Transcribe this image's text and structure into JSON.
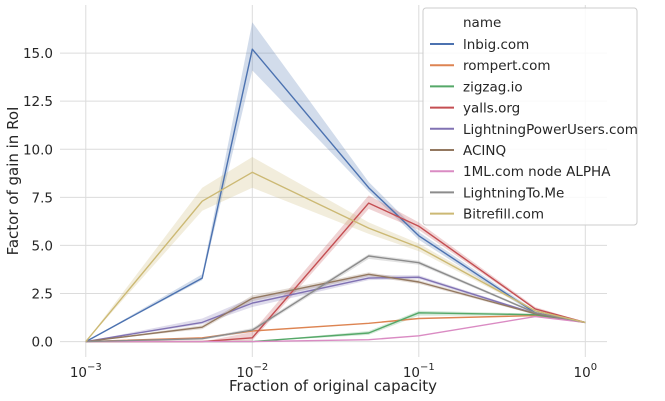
{
  "chart_data": {
    "type": "line",
    "xlabel": "Fraction of original capacity",
    "ylabel": "Factor of gain in RoI",
    "xscale": "log",
    "xlim": [
      0.0007,
      1.35
    ],
    "ylim": [
      -0.8,
      17.5
    ],
    "x_ticks": [
      {
        "value": 0.001,
        "base": "10",
        "exp": "−3"
      },
      {
        "value": 0.01,
        "base": "10",
        "exp": "−2"
      },
      {
        "value": 0.1,
        "base": "10",
        "exp": "−1"
      },
      {
        "value": 1,
        "base": "10",
        "exp": "0"
      }
    ],
    "y_ticks": [
      {
        "value": 0,
        "label": "0.0"
      },
      {
        "value": 2.5,
        "label": "2.5"
      },
      {
        "value": 5,
        "label": "5.0"
      },
      {
        "value": 7.5,
        "label": "7.5"
      },
      {
        "value": 10,
        "label": "10.0"
      },
      {
        "value": 12.5,
        "label": "12.5"
      },
      {
        "value": 15,
        "label": "15.0"
      }
    ],
    "grid": true,
    "legend": {
      "title": "name",
      "placement": "top-right"
    },
    "x": [
      0.001,
      0.005,
      0.01,
      0.05,
      0.1,
      0.5,
      1
    ],
    "series": [
      {
        "name": "lnbig.com",
        "color": "#4c72b0",
        "values": [
          0,
          3.3,
          15.2,
          8.0,
          5.5,
          1.5,
          1.0
        ],
        "ci_low": [
          0,
          3.2,
          14.1,
          7.8,
          5.3,
          1.4,
          1.0
        ],
        "ci_high": [
          0,
          3.5,
          16.6,
          8.3,
          5.7,
          1.6,
          1.0
        ]
      },
      {
        "name": "rompert.com",
        "color": "#dd8452",
        "values": [
          0,
          0.2,
          0.55,
          0.95,
          1.2,
          1.35,
          1.0
        ]
      },
      {
        "name": "zigzag.io",
        "color": "#55a868",
        "values": [
          0,
          0,
          0,
          0.45,
          1.5,
          1.4,
          1.0
        ],
        "ci_low": [
          0,
          0,
          0,
          0.35,
          1.35,
          1.35,
          1.0
        ],
        "ci_high": [
          0,
          0,
          0,
          0.55,
          1.6,
          1.45,
          1.0
        ]
      },
      {
        "name": "yalls.org",
        "color": "#c44e52",
        "values": [
          0,
          0,
          0.2,
          7.2,
          6.0,
          1.7,
          1.0
        ],
        "ci_low": [
          0,
          0,
          0.05,
          6.9,
          5.8,
          1.65,
          1.0
        ],
        "ci_high": [
          0,
          0,
          0.5,
          7.6,
          6.2,
          1.8,
          1.0
        ]
      },
      {
        "name": "LightningPowerUsers.com",
        "color": "#8172b3",
        "values": [
          0,
          1.0,
          2.0,
          3.3,
          3.35,
          1.45,
          1.0
        ],
        "ci_low": [
          0,
          0.9,
          1.8,
          3.2,
          3.25,
          1.4,
          1.0
        ],
        "ci_high": [
          0,
          1.2,
          2.3,
          3.45,
          3.45,
          1.5,
          1.0
        ]
      },
      {
        "name": "ACINQ",
        "color": "#937860",
        "values": [
          0,
          0.75,
          2.25,
          3.5,
          3.1,
          1.45,
          1.0
        ],
        "ci_low": [
          0,
          0.65,
          2.1,
          3.4,
          3.0,
          1.4,
          1.0
        ],
        "ci_high": [
          0,
          0.85,
          2.4,
          3.6,
          3.2,
          1.5,
          1.0
        ]
      },
      {
        "name": "1ML.com node ALPHA",
        "color": "#da8bc3",
        "values": [
          0,
          0,
          0,
          0.1,
          0.3,
          1.3,
          1.0
        ]
      },
      {
        "name": "LightningTo.Me",
        "color": "#8c8c8c",
        "values": [
          0,
          0.15,
          0.6,
          4.45,
          4.1,
          1.5,
          1.0
        ],
        "ci_low": [
          0,
          0.1,
          0.5,
          4.3,
          4.0,
          1.45,
          1.0
        ],
        "ci_high": [
          0,
          0.2,
          0.7,
          4.55,
          4.2,
          1.55,
          1.0
        ]
      },
      {
        "name": "Bitrefill.com",
        "color": "#ccb974",
        "values": [
          0,
          7.3,
          8.8,
          5.9,
          4.9,
          1.6,
          1.0
        ],
        "ci_low": [
          0,
          6.8,
          8.0,
          5.6,
          4.7,
          1.55,
          1.0
        ],
        "ci_high": [
          0,
          8.0,
          9.6,
          6.2,
          5.1,
          1.65,
          1.0
        ]
      }
    ]
  }
}
